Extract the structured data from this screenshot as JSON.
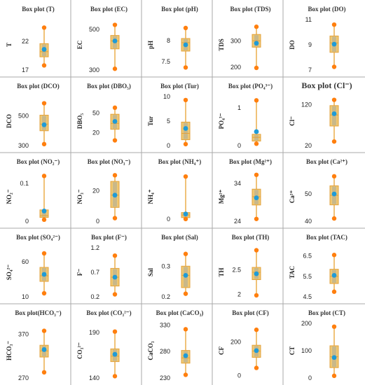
{
  "colors": {
    "grid_line": "#aaaaaa",
    "box_fill": "#f0c872",
    "box_inner": "#c9b889",
    "box_stroke": "#e2a23c",
    "whisker": "#e8a030",
    "whisker_end": "#ff7f0e",
    "mean_point": "#1f9bd7"
  },
  "chart_data": [
    {
      "type": "box",
      "title": "Box plot (T)",
      "ylabel": "T",
      "yticks": [
        "22",
        "17"
      ],
      "ytick_values": [
        22,
        17
      ],
      "ylim": [
        17,
        25.8
      ],
      "min": 17.8,
      "q1": 19.3,
      "median": 20.2,
      "q3": 21.6,
      "max": 24.4,
      "mean": 20.6
    },
    {
      "type": "box",
      "title": "Box plot (EC)",
      "ylabel": "EC",
      "yticks": [
        "500",
        "300"
      ],
      "ytick_values": [
        500,
        300
      ],
      "ylim": [
        300,
        548
      ],
      "min": 306,
      "q1": 404,
      "median": 443,
      "q3": 470,
      "max": 522,
      "mean": 443
    },
    {
      "type": "box",
      "title": "Box plot (pH)",
      "ylabel": "pH",
      "yticks": [
        "8",
        "7.5"
      ],
      "ytick_values": [
        8,
        7.5
      ],
      "ylim": [
        7.3,
        8.5
      ],
      "min": 7.36,
      "q1": 7.75,
      "median": 7.95,
      "q3": 8.05,
      "max": 8.3,
      "mean": 7.9
    },
    {
      "type": "box",
      "title": "Box plot (TDS)",
      "ylabel": "TDS",
      "yticks": [
        "300",
        "200"
      ],
      "ytick_values": [
        300,
        200
      ],
      "ylim": [
        190,
        380
      ],
      "min": 198,
      "q1": 276,
      "median": 300,
      "q3": 324,
      "max": 353,
      "mean": 291
    },
    {
      "type": "box",
      "title": "Box plot (DO)",
      "ylabel": "DO",
      "yticks": [
        "11",
        "9",
        "7"
      ],
      "ytick_values": [
        11,
        9,
        7
      ],
      "ylim": [
        7,
        11
      ],
      "min": 7.25,
      "q1": 8.4,
      "median": 9.15,
      "q3": 9.7,
      "max": 10.6,
      "mean": 9.05
    },
    {
      "type": "box",
      "title": "Box plot (DCO)",
      "ylabel": "DCO",
      "yticks": [
        "500",
        "300"
      ],
      "ytick_values": [
        500,
        300
      ],
      "ylim": [
        300,
        630
      ],
      "min": 310,
      "q1": 400,
      "median": 445,
      "q3": 505,
      "max": 585,
      "mean": 440
    },
    {
      "type": "box",
      "title": "Box plot (DBO₅)",
      "ylabel": "DBO₅",
      "yticks": [
        "50",
        "20"
      ],
      "ytick_values": [
        50,
        20
      ],
      "ylim": [
        0,
        75
      ],
      "min": 8,
      "q1": 25,
      "median": 34,
      "q3": 48,
      "max": 58,
      "mean": 37
    },
    {
      "type": "box",
      "title": "Box plot (Tur)",
      "ylabel": "Tur",
      "yticks": [
        "10",
        "5",
        "0"
      ],
      "ytick_values": [
        10,
        5,
        0
      ],
      "ylim": [
        0,
        10
      ],
      "min": 0.3,
      "q1": 1.2,
      "median": 2.5,
      "q3": 4.8,
      "max": 9.3,
      "mean": 3.5
    },
    {
      "type": "box",
      "title": "Box plot (PO₄³⁻)",
      "ylabel": "PO₄³⁻",
      "yticks": [
        "1",
        "0"
      ],
      "ytick_values": [
        1,
        0
      ],
      "ylim": [
        0,
        1.3
      ],
      "min": 0.05,
      "q1": 0.12,
      "median": 0.22,
      "q3": 0.3,
      "max": 1.2,
      "mean": 0.37
    },
    {
      "type": "box",
      "title": "Box plot (Cl⁻)",
      "ylabel": "Cl⁻",
      "yticks": [
        "120",
        "20"
      ],
      "ytick_values": [
        120,
        20
      ],
      "ylim": [
        20,
        140
      ],
      "min": 30,
      "q1": 68,
      "median": 95,
      "q3": 118,
      "max": 132,
      "mean": 98
    },
    {
      "type": "box",
      "title": "Box plot (NO₂⁻)",
      "ylabel": "NO₂⁻",
      "yticks": [
        "0.1",
        "0"
      ],
      "ytick_values": [
        0.1,
        0
      ],
      "ylim": [
        0,
        0.13
      ],
      "min": 0.004,
      "q1": 0.01,
      "median": 0.015,
      "q3": 0.03,
      "max": 0.12,
      "mean": 0.027
    },
    {
      "type": "box",
      "title": "Box plot (NO₃⁻)",
      "ylabel": "NO₃⁻",
      "yticks": [
        "20",
        "0"
      ],
      "ytick_values": [
        20,
        0
      ],
      "ylim": [
        0,
        32
      ],
      "min": 2,
      "q1": 9,
      "median": 17,
      "q3": 26,
      "max": 30,
      "mean": 17
    },
    {
      "type": "box",
      "title": "Box plot (NH₄⁺)",
      "ylabel": "NH₄⁺",
      "yticks": [
        "0"
      ],
      "ytick_values": [
        0
      ],
      "ylim": [
        -0.6,
        13
      ],
      "min": 0,
      "q1": 0.4,
      "median": 1.1,
      "q3": 1.8,
      "max": 11.8,
      "mean": 1.4
    },
    {
      "type": "box",
      "title": "Box plot (Mg²⁺)",
      "ylabel": "Mg²⁺",
      "yticks": [
        "34",
        "24"
      ],
      "ytick_values": [
        34,
        24
      ],
      "ylim": [
        24,
        37
      ],
      "min": 24.6,
      "q1": 28.3,
      "median": 30.5,
      "q3": 32.5,
      "max": 36.3,
      "mean": 30.2
    },
    {
      "type": "box",
      "title": "Box plot (Ca²⁺)",
      "ylabel": "Ca²⁺",
      "yticks": [
        "50",
        "40"
      ],
      "ytick_values": [
        50,
        40
      ],
      "ylim": [
        40,
        58
      ],
      "min": 41,
      "q1": 46,
      "median": 49.5,
      "q3": 53,
      "max": 56.5,
      "mean": 50
    },
    {
      "type": "box",
      "title": "Box plot (SO₄²⁻)",
      "ylabel": "SO₄²⁻",
      "yticks": [
        "60",
        "10"
      ],
      "ytick_values": [
        60,
        10
      ],
      "ylim": [
        10,
        80
      ],
      "min": 15,
      "q1": 32,
      "median": 40,
      "q3": 52,
      "max": 72,
      "mean": 42
    },
    {
      "type": "box",
      "title": "Box plot (F⁻)",
      "ylabel": "F⁻",
      "yticks": [
        "1.2",
        "0.7",
        "0.2"
      ],
      "ytick_values": [
        1.2,
        0.7,
        0.2
      ],
      "ylim": [
        0.2,
        1.2
      ],
      "min": 0.25,
      "q1": 0.42,
      "median": 0.6,
      "q3": 0.78,
      "max": 1.04,
      "mean": 0.6
    },
    {
      "type": "box",
      "title": "Box plot (Sal)",
      "ylabel": "Sal",
      "yticks": [
        "0.3",
        "0.2"
      ],
      "ytick_values": [
        0.3,
        0.2
      ],
      "ylim": [
        0.2,
        0.36
      ],
      "min": 0.21,
      "q1": 0.23,
      "median": 0.27,
      "q3": 0.3,
      "max": 0.34,
      "mean": 0.27
    },
    {
      "type": "box",
      "title": "Box plot (TH)",
      "ylabel": "TH",
      "yticks": [
        "2",
        "2.5"
      ],
      "ytick_values": [
        2,
        2.5
      ],
      "ylim": [
        1.95,
        2.95
      ],
      "min": 1.98,
      "q1": 2.3,
      "median": 2.45,
      "q3": 2.55,
      "max": 2.9,
      "mean": 2.42
    },
    {
      "type": "box",
      "title": "Box plot (TAC)",
      "ylabel": "TAC",
      "yticks": [
        "6.5",
        "5.5",
        "4.5"
      ],
      "ytick_values": [
        6.5,
        5.5,
        4.5
      ],
      "ylim": [
        4.5,
        6.9
      ],
      "min": 4.75,
      "q1": 5.15,
      "median": 5.5,
      "q3": 5.85,
      "max": 6.55,
      "mean": 5.55
    },
    {
      "type": "box",
      "title": "Box plot(HCO₃⁻)",
      "ylabel": "HCO₃⁻",
      "yticks": [
        "370",
        "270"
      ],
      "ytick_values": [
        370,
        270
      ],
      "ylim": [
        270,
        395
      ],
      "min": 283,
      "q1": 318,
      "median": 332,
      "q3": 345,
      "max": 378,
      "mean": 335
    },
    {
      "type": "box",
      "title": "Box plot (CO₃²⁻)",
      "ylabel": "CO₃²⁻",
      "yticks": [
        "190",
        "140"
      ],
      "ytick_values": [
        190,
        140
      ],
      "ylim": [
        140,
        200
      ],
      "min": 142,
      "q1": 158,
      "median": 164,
      "q3": 172,
      "max": 191,
      "mean": 166
    },
    {
      "type": "box",
      "title": "Box plot (CaCO₃)",
      "ylabel": "CaCO₃",
      "yticks": [
        "330",
        "280",
        "230"
      ],
      "ytick_values": [
        330,
        280,
        230
      ],
      "ylim": [
        230,
        333
      ],
      "min": 236,
      "q1": 258,
      "median": 268,
      "q3": 282,
      "max": 322,
      "mean": 272
    },
    {
      "type": "box",
      "title": "Box plot (CF)",
      "ylabel": "CF",
      "yticks": [
        "200",
        "0"
      ],
      "ytick_values": [
        200,
        0
      ],
      "ylim": [
        -15,
        310
      ],
      "min": 45,
      "q1": 108,
      "median": 145,
      "q3": 180,
      "max": 272,
      "mean": 148
    },
    {
      "type": "box",
      "title": "Box plot (CT)",
      "ylabel": "CT",
      "yticks": [
        "200",
        "100",
        "0"
      ],
      "ytick_values": [
        200,
        100,
        0
      ],
      "ylim": [
        0,
        200
      ],
      "min": 8,
      "q1": 38,
      "median": 78,
      "q3": 118,
      "max": 188,
      "mean": 75
    }
  ]
}
